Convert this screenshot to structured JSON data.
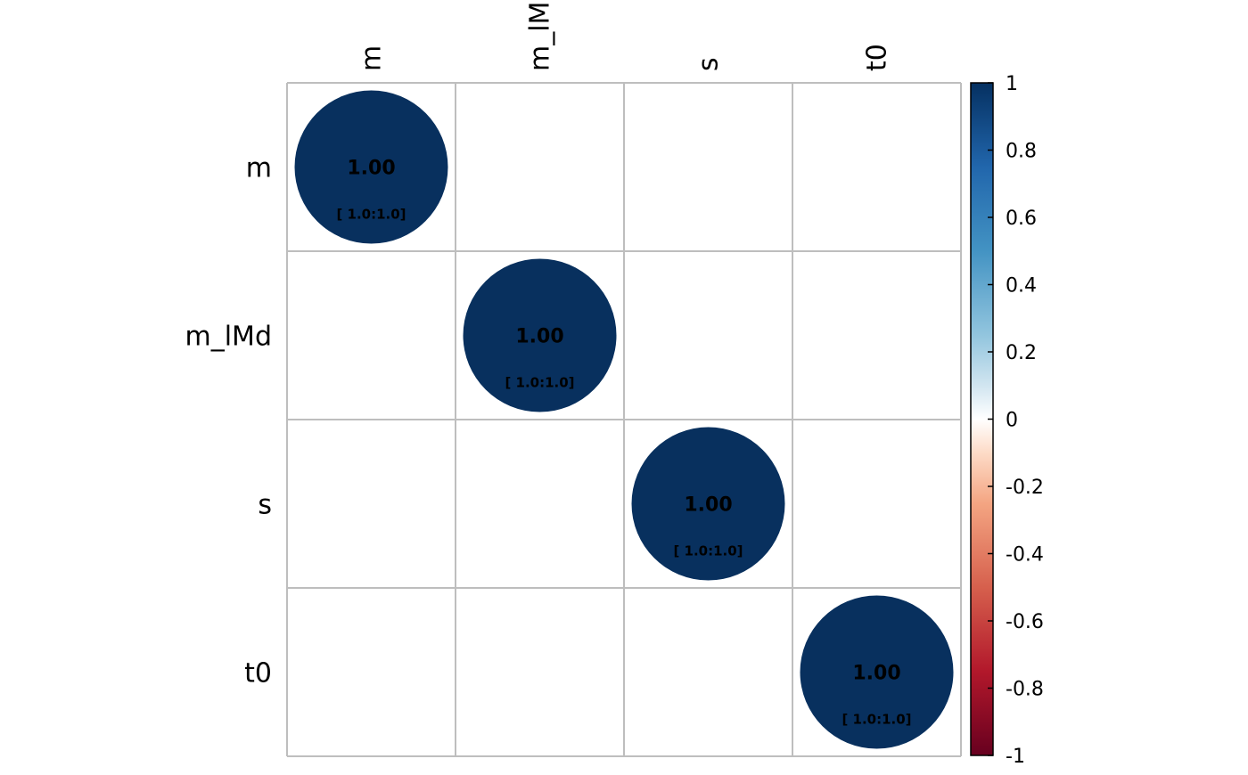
{
  "chart_data": {
    "type": "heatmap",
    "subtype": "correlation-circle-matrix",
    "title": "",
    "variables": [
      "m",
      "m_lMd",
      "s",
      "t0"
    ],
    "column_labels_shown": [
      "m",
      "m_lM",
      "s",
      "t0"
    ],
    "row_labels": [
      "m",
      "m_lMd",
      "s",
      "t0"
    ],
    "matrix": [
      [
        1.0,
        null,
        null,
        null
      ],
      [
        null,
        1.0,
        null,
        null
      ],
      [
        null,
        null,
        1.0,
        null
      ],
      [
        null,
        null,
        null,
        1.0
      ]
    ],
    "cells": [
      {
        "row": 0,
        "col": 0,
        "value": 1.0,
        "label": "1.00",
        "ci_label": "[ 1.0:1.0]"
      },
      {
        "row": 1,
        "col": 1,
        "value": 1.0,
        "label": "1.00",
        "ci_label": "[ 1.0:1.0]"
      },
      {
        "row": 2,
        "col": 2,
        "value": 1.0,
        "label": "1.00",
        "ci_label": "[ 1.0:1.0]"
      },
      {
        "row": 3,
        "col": 3,
        "value": 1.0,
        "label": "1.00",
        "ci_label": "[ 1.0:1.0]"
      }
    ],
    "colorbar": {
      "range": [
        -1,
        1
      ],
      "tick_labels": [
        "1",
        "0.8",
        "0.6",
        "0.4",
        "0.2",
        "0",
        "-0.2",
        "-0.4",
        "-0.6",
        "-0.8",
        "-1"
      ],
      "tick_values": [
        1,
        0.8,
        0.6,
        0.4,
        0.2,
        0,
        -0.2,
        -0.4,
        -0.6,
        -0.8,
        -1
      ],
      "stops": [
        {
          "value": -1.0,
          "color": "#67001F"
        },
        {
          "value": -0.75,
          "color": "#B2182B"
        },
        {
          "value": -0.5,
          "color": "#D6604D"
        },
        {
          "value": -0.25,
          "color": "#F4A582"
        },
        {
          "value": -0.1,
          "color": "#FDDBC7"
        },
        {
          "value": 0.0,
          "color": "#FFFFFF"
        },
        {
          "value": 0.1,
          "color": "#D1E5F0"
        },
        {
          "value": 0.25,
          "color": "#92C5DE"
        },
        {
          "value": 0.5,
          "color": "#4393C3"
        },
        {
          "value": 0.75,
          "color": "#2166AC"
        },
        {
          "value": 1.0,
          "color": "#053061"
        }
      ]
    },
    "circle_color": "#08305E",
    "grid_color": "#BEBEBE",
    "grid": true,
    "legend_placement": "right"
  }
}
